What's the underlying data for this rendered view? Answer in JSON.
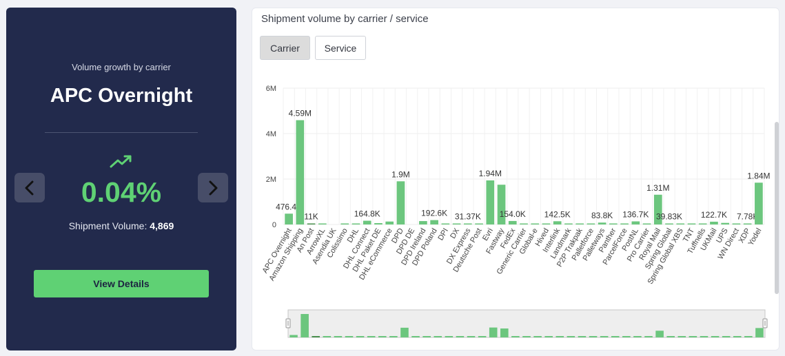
{
  "summary": {
    "caption": "Volume growth by carrier",
    "carrier_name": "APC Overnight",
    "growth_pct": "0.04%",
    "volume_label": "Shipment Volume:",
    "volume_value": "4,869",
    "view_details_label": "View Details",
    "trend_icon": "trending-up-icon",
    "accent_color": "#5fd174",
    "panel_color": "#222a4c"
  },
  "chart_panel": {
    "title": "Shipment volume by carrier / service",
    "toggles": [
      "Carrier",
      "Service"
    ],
    "active_toggle": "Carrier"
  },
  "chart_data": {
    "type": "bar",
    "ylim": [
      0,
      6000000
    ],
    "yticks": [
      0,
      2000000,
      4000000,
      6000000
    ],
    "ytick_labels": [
      "0",
      "2M",
      "4M",
      "6M"
    ],
    "grid": true,
    "categories": [
      "APC Overnight",
      "Amazon Shipping",
      "An Post",
      "ArrowXL",
      "Asendia UK",
      "Colissimo",
      "DHL",
      "DHL Connect",
      "DHL Paket DE",
      "DHL eCommerce",
      "DPD",
      "DPD DE",
      "DPD Ireland",
      "DPD Poland",
      "DPI",
      "DX",
      "DX Express",
      "Deutsche Post",
      "Evri",
      "Fastway",
      "FedEx",
      "Generic Carrier",
      "Global-e",
      "Hived",
      "Interlink",
      "Landmark",
      "P2P Trakpak",
      "Palletforce",
      "Palletways",
      "Panther",
      "ParcelForce",
      "PostNL",
      "Pro Carrier",
      "Royal Mail",
      "Spring Global",
      "Spring Global XBS",
      "TNT",
      "Tuffnells",
      "UKMail",
      "UPS",
      "WN Direct",
      "XDP",
      "Yodel"
    ],
    "values": [
      476400,
      4590000,
      11000,
      12000,
      0,
      10000,
      15000,
      164800,
      60000,
      130000,
      1900000,
      0,
      150000,
      192600,
      5000,
      8000,
      31370,
      25000,
      1940000,
      1750000,
      154000,
      10000,
      8000,
      10000,
      142500,
      40000,
      5000,
      20000,
      83800,
      10000,
      40000,
      136700,
      15000,
      1310000,
      39830,
      20000,
      10000,
      15000,
      122700,
      70000,
      5000,
      7780,
      1840000
    ],
    "data_labels": [
      "476.4K",
      "4.59M",
      "11K",
      "",
      "",
      "",
      "",
      "164.8K",
      "",
      "",
      "1.9M",
      "",
      "",
      "192.6K",
      "",
      "",
      "31.37K",
      "",
      "1.94M",
      "",
      "154.0K",
      "",
      "",
      "",
      "142.5K",
      "",
      "",
      "",
      "83.8K",
      "",
      "",
      "136.7K",
      "",
      "1.31M",
      "39.83K",
      "",
      "",
      "",
      "122.7K",
      "",
      "",
      "7.78K",
      "1.84M"
    ],
    "highlight": "An Post",
    "bar_color": "#6cc67e",
    "highlight_color": "#4a8f4e"
  }
}
